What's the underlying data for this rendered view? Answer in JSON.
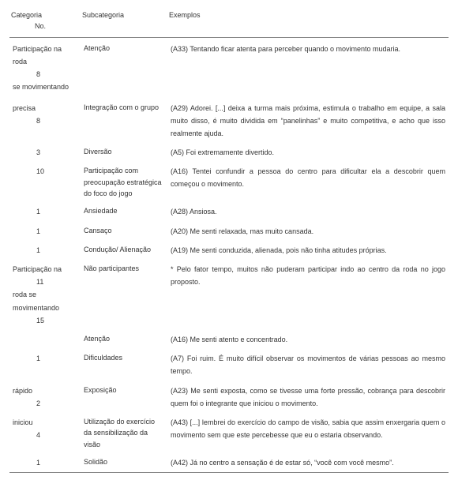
{
  "headers": {
    "categoria": "Categoria",
    "no": "No.",
    "subcategoria": "Subcategoria",
    "exemplos": "Exemplos"
  },
  "rows": [
    {
      "cat_lines": [
        "Participação na roda",
        "8",
        "se movimentando"
      ],
      "no": "",
      "sub": "Atenção",
      "ex": "(A33) Tentando ficar atenta para perceber quando o movimento mudaria."
    },
    {
      "cat_lines": [
        "precisa"
      ],
      "no": "8",
      "sub": "Integração com o grupo",
      "ex": "(A29) Adorei. [...] deixa a turma mais próxima, estimula o trabalho em equipe, a sala muito disso, é muito dividida em “panelinhas” e muito competitiva, e acho que isso realmente ajuda."
    },
    {
      "cat_lines": [],
      "no": "3",
      "sub": "Diversão",
      "ex": "(A5) Foi extremamente divertido."
    },
    {
      "cat_lines": [],
      "no": "10",
      "sub": "Participação com preocupação estratégica do foco do jogo",
      "ex": "(A16) Tentei confundir a pessoa do centro para dificultar ela a descobrir quem começou o movimento."
    },
    {
      "cat_lines": [],
      "no": "1",
      "sub": "Ansiedade",
      "ex": "(A28) Ansiosa."
    },
    {
      "cat_lines": [],
      "no": "1",
      "sub": "Cansaço",
      "ex": "(A20) Me senti relaxada, mas muito cansada."
    },
    {
      "cat_lines": [],
      "no": "1",
      "sub": "Condução/ Alienação",
      "ex": "(A19) Me senti conduzida, alienada, pois não tinha atitudes próprias."
    },
    {
      "cat_lines": [
        "Participação na",
        "11",
        "roda se",
        "movimentando",
        "15"
      ],
      "no": "",
      "sub": "Não participantes",
      "ex": "* Pelo fator tempo, muitos não puderam participar indo ao centro da roda no jogo proposto."
    },
    {
      "cat_lines": [],
      "no": "",
      "sub": "Atenção",
      "ex": "(A16) Me senti atento e concentrado."
    },
    {
      "cat_lines": [],
      "no": "1",
      "sub": "Dificuldades",
      "ex": "(A7) Foi ruim. É muito difícil observar os movimentos de várias pessoas ao mesmo tempo."
    },
    {
      "cat_lines": [
        "rápido"
      ],
      "no": "2",
      "sub": "Exposição",
      "ex": "(A23) Me senti exposta, como se tivesse uma forte pressão, cobrança para descobrir quem foi o integrante que iniciou o movimento."
    },
    {
      "cat_lines": [
        "iniciou"
      ],
      "no": "4",
      "sub": "Utilização do exercício da sensibilização da visão",
      "ex": "(A43) [...] lembrei do exercício do campo de visão, sabia que assim enxergaria quem o movimento sem que este percebesse que eu o estaria observando."
    },
    {
      "cat_lines": [],
      "no": "1",
      "sub": "Solidão",
      "ex": "(A42) Já no centro a sensação é de estar só, “você com você mesmo”."
    }
  ]
}
